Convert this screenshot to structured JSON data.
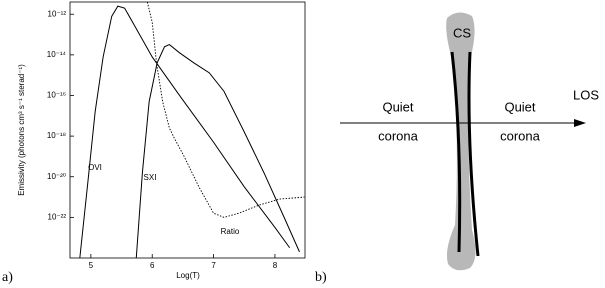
{
  "panel_labels": [
    "a)",
    "b)"
  ],
  "chart_data": {
    "type": "line",
    "x_label": "Log(T)",
    "y_label": "Emissivity (photons cm³ s⁻¹ sterad⁻¹)",
    "xlim": [
      4.66,
      8.49
    ],
    "xticks": [
      5,
      6,
      7,
      8
    ],
    "ylim": [
      1e-24,
      4e-12
    ],
    "ylog": true,
    "yticks": [
      {
        "value": 1e-12,
        "label": "10⁻¹²"
      },
      {
        "value": 1e-14,
        "label": "10⁻¹⁴"
      },
      {
        "value": 1e-16,
        "label": "10⁻¹⁶"
      },
      {
        "value": 1e-18,
        "label": "10⁻¹⁸"
      },
      {
        "value": 1e-20,
        "label": "10⁻²⁰"
      },
      {
        "value": 1e-22,
        "label": "10⁻²²"
      }
    ],
    "series": [
      {
        "name": "OVI",
        "color": "#000000",
        "dash": false,
        "x": [
          4.82,
          4.95,
          5.07,
          5.2,
          5.34,
          5.44,
          5.55,
          5.72,
          6.0,
          6.47,
          7.0,
          7.5,
          8.0,
          8.24
        ],
        "values": [
          1e-24,
          5e-21,
          1.6e-17,
          7.9e-15,
          7.9e-13,
          2.5e-12,
          2e-12,
          2.5e-13,
          7.9e-15,
          7.9e-17,
          5e-19,
          3.2e-21,
          3.2e-23,
          3.2e-24
        ]
      },
      {
        "name": "SXI",
        "color": "#000000",
        "dash": false,
        "x": [
          5.74,
          5.84,
          5.95,
          6.08,
          6.2,
          6.28,
          6.44,
          6.68,
          6.93,
          7.17,
          7.5,
          7.82,
          8.15,
          8.4
        ],
        "values": [
          1e-24,
          1.6e-20,
          5e-17,
          4e-15,
          2.5e-14,
          3.2e-14,
          1.3e-14,
          4e-15,
          1.3e-15,
          1.6e-16,
          1.6e-18,
          1.6e-20,
          1e-22,
          2e-24
        ]
      },
      {
        "name": "Ratio",
        "color": "#000000",
        "dash": true,
        "x": [
          5.92,
          6.0,
          6.07,
          6.17,
          6.28,
          6.36,
          6.52,
          6.76,
          7.0,
          7.17,
          7.41,
          7.74,
          8.07,
          8.48
        ],
        "values": [
          4e-12,
          4e-13,
          4e-15,
          5e-17,
          2.5e-18,
          7.9e-19,
          1e-19,
          3.2e-21,
          1.6e-22,
          1e-22,
          1.6e-22,
          4e-22,
          7.9e-22,
          1e-21
        ]
      }
    ]
  },
  "diagram": {
    "sheet_label": "CS",
    "left_label": [
      "Quiet",
      "corona"
    ],
    "right_label": [
      "Quiet",
      "corona"
    ],
    "arrow_label": "LOS"
  }
}
